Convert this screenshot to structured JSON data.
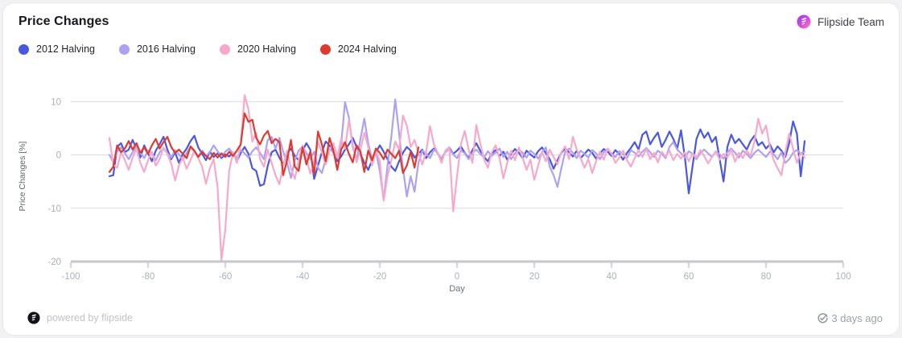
{
  "header": {
    "title": "Price Changes",
    "team": "Flipside Team"
  },
  "legend": [
    {
      "label": "2012 Halving",
      "color": "#4a57e3"
    },
    {
      "label": "2016 Halving",
      "color": "#ada2f2"
    },
    {
      "label": "2020 Halving",
      "color": "#f8a9cb"
    },
    {
      "label": "2024 Halving",
      "color": "#dd3b30"
    }
  ],
  "chart_data": {
    "type": "line",
    "title": "Price Changes",
    "xlabel": "Day",
    "ylabel": "Price Changes [%]",
    "xlim": [
      -100,
      100
    ],
    "ylim": [
      -20,
      12
    ],
    "x_ticks": [
      -100,
      -80,
      -60,
      -40,
      -20,
      0,
      20,
      40,
      60,
      80,
      100
    ],
    "y_ticks": [
      10,
      0,
      -10,
      -20
    ],
    "grid": true,
    "legend_position": "top-left",
    "series": [
      {
        "name": "2012 Halving",
        "color": "#4a57e3",
        "x_start": -90,
        "x_step": 1,
        "values": [
          -4.0,
          -3.8,
          1.5,
          2.2,
          0.5,
          1.0,
          2.8,
          1.2,
          -0.5,
          1.8,
          0.3,
          -1.2,
          0.8,
          2.0,
          3.4,
          1.0,
          -0.8,
          0.5,
          -1.5,
          0.2,
          1.2,
          2.6,
          3.6,
          1.4,
          0.2,
          -1.0,
          0.6,
          -0.4,
          0.3,
          -0.6,
          0.1,
          -0.3,
          0.5,
          -1.2,
          0.4,
          1.5,
          0.2,
          -2.5,
          -3.0,
          -5.8,
          -5.5,
          -2.0,
          0.5,
          1.0,
          -0.5,
          -1.8,
          0.3,
          1.2,
          -0.2,
          -1.0,
          0.8,
          2.2,
          1.0,
          -4.5,
          -2.0,
          0.5,
          2.5,
          1.8,
          0.4,
          -1.2,
          -0.3,
          1.0,
          2.0,
          3.2,
          1.5,
          0.2,
          -1.5,
          -2.8,
          -1.0,
          0.5,
          1.8,
          0.6,
          -0.8,
          -2.2,
          -3.0,
          -1.2,
          0.4,
          1.5,
          0.8,
          -0.5,
          0.2,
          1.0,
          -0.6,
          0.5,
          1.2,
          0.3,
          -0.8,
          0.6,
          1.4,
          0.2,
          0.8,
          1.6,
          0.4,
          -0.6,
          0.9,
          2.2,
          0.8,
          -0.4,
          -1.2,
          0.3,
          0.9,
          -0.2,
          0.6,
          -0.9,
          0.2,
          1.1,
          0.4,
          -0.6,
          0.8,
          0.1,
          -0.5,
          0.7,
          1.4,
          0.3,
          -0.8,
          -2.6,
          -1.0,
          0.4,
          1.2,
          0.5,
          -0.3,
          0.8,
          -0.6,
          0.2,
          1.0,
          0.4,
          -0.7,
          0.3,
          1.1,
          0.6,
          -0.2,
          0.9,
          0.2,
          -0.9,
          0.4,
          1.3,
          2.4,
          1.0,
          3.8,
          4.4,
          2.0,
          3.2,
          4.2,
          1.5,
          2.8,
          4.4,
          3.0,
          1.2,
          4.6,
          -0.5,
          -7.2,
          -2.0,
          3.0,
          4.8,
          3.2,
          4.2,
          2.4,
          3.4,
          -0.8,
          -5.0,
          1.5,
          3.8,
          2.2,
          3.0,
          2.0,
          1.0,
          2.6,
          3.6,
          1.8,
          2.4,
          1.2,
          2.0,
          0.5,
          1.6,
          0.8,
          -0.4,
          2.2,
          6.3,
          4.0,
          -4.0,
          2.6
        ]
      },
      {
        "name": "2016 Halving",
        "color": "#ada2f2",
        "x_start": -90,
        "x_step": 1,
        "values": [
          0.0,
          -1.4,
          0.6,
          1.4,
          0.3,
          -0.8,
          0.5,
          1.6,
          0.4,
          -0.6,
          0.8,
          0.2,
          -1.0,
          0.5,
          1.2,
          0.3,
          -0.5,
          0.9,
          0.1,
          -0.9,
          0.4,
          1.5,
          0.6,
          -0.4,
          0.8,
          -0.2,
          0.5,
          1.8,
          0.7,
          -0.3,
          0.6,
          1.2,
          0.2,
          -0.6,
          0.9,
          0.3,
          -0.5,
          0.7,
          1.4,
          0.4,
          -0.8,
          2.8,
          3.4,
          1.2,
          3.2,
          0.6,
          -1.5,
          -4.3,
          -1.0,
          0.8,
          1.6,
          0.4,
          -0.8,
          0.6,
          -2.4,
          -3.4,
          -0.8,
          1.2,
          0.4,
          -0.6,
          2.0,
          9.9,
          7.0,
          1.5,
          -1.0,
          3.0,
          6.8,
          2.2,
          -0.8,
          0.6,
          -3.0,
          -8.4,
          -2.0,
          3.5,
          10.4,
          4.0,
          -2.5,
          -7.8,
          -4.0,
          -6.9,
          -1.5,
          0.8,
          0.3,
          -0.6,
          1.0,
          0.4,
          -0.9,
          0.5,
          1.2,
          0.1,
          -0.6,
          0.8,
          0.3,
          -0.8,
          0.4,
          1.0,
          0.2,
          -0.5,
          0.7,
          -0.2,
          0.5,
          1.2,
          -0.4,
          0.6,
          -0.8,
          0.3,
          1.0,
          0.4,
          -0.5,
          0.8,
          0.2,
          -0.7,
          0.5,
          1.4,
          -2.2,
          -3.8,
          -6.0,
          -2.5,
          0.6,
          1.2,
          0.4,
          -0.6,
          0.8,
          0.2,
          -0.5,
          0.9,
          0.3,
          -0.8,
          0.5,
          1.1,
          0.2,
          -0.4,
          0.7,
          0.1,
          -0.6,
          0.9,
          0.4,
          -0.3,
          0.6,
          1.3,
          0.5,
          -0.4,
          0.8,
          0.2,
          -0.6,
          1.5,
          2.4,
          1.0,
          0.3,
          -0.5,
          0.7,
          0.2,
          -0.8,
          0.4,
          1.0,
          0.3,
          -0.4,
          0.6,
          0.1,
          -0.7,
          0.5,
          1.2,
          0.4,
          -0.5,
          0.8,
          0.2,
          -0.6,
          0.4,
          1.0,
          0.3,
          -0.4,
          0.6,
          0.1,
          -0.8,
          0.5,
          -1.5,
          -0.8,
          0.4,
          0.9,
          0.3,
          0.6
        ]
      },
      {
        "name": "2020 Halving",
        "color": "#f8a9cb",
        "x_start": -90,
        "x_step": 1,
        "values": [
          3.2,
          -1.8,
          -2.4,
          0.5,
          -1.0,
          -2.8,
          -0.5,
          1.2,
          -1.5,
          -3.2,
          -1.0,
          0.6,
          -2.0,
          -0.8,
          1.4,
          0.2,
          -1.6,
          -4.8,
          -2.0,
          -0.5,
          -2.6,
          -1.0,
          0.8,
          -0.6,
          -2.2,
          -5.4,
          -2.5,
          -0.8,
          -6.0,
          -19.7,
          -14.0,
          -3.0,
          0.5,
          -1.5,
          2.0,
          11.2,
          8.5,
          2.5,
          4.2,
          -0.8,
          -2.2,
          1.0,
          -1.5,
          -3.8,
          -5.5,
          -2.0,
          0.8,
          -2.5,
          -4.5,
          -1.0,
          1.8,
          -0.6,
          -3.5,
          -1.2,
          2.4,
          0.5,
          -1.8,
          0.9,
          2.2,
          -0.4,
          3.0,
          1.2,
          6.5,
          2.0,
          -1.4,
          1.0,
          4.2,
          1.5,
          -2.0,
          0.8,
          -1.2,
          -8.6,
          -4.0,
          -1.0,
          2.5,
          1.0,
          7.4,
          5.5,
          1.5,
          2.8,
          0.5,
          -1.8,
          0.6,
          5.4,
          2.0,
          0.4,
          -1.5,
          0.8,
          1.5,
          -10.6,
          -4.0,
          2.0,
          4.5,
          1.0,
          -1.5,
          5.6,
          2.2,
          -0.8,
          -2.4,
          0.5,
          1.8,
          -0.6,
          -4.4,
          -1.5,
          0.8,
          -1.0,
          1.4,
          -0.5,
          -2.8,
          -0.9,
          -4.7,
          -2.0,
          0.6,
          -1.2,
          1.0,
          -0.4,
          -1.8,
          0.5,
          1.6,
          -0.8,
          3.4,
          1.0,
          -0.6,
          -2.4,
          -0.8,
          -3.4,
          -1.2,
          0.6,
          -0.9,
          1.2,
          0.3,
          -1.5,
          -0.5,
          0.8,
          -1.0,
          -2.2,
          -0.6,
          0.9,
          -0.4,
          1.1,
          -0.8,
          0.4,
          -1.4,
          0.6,
          -0.3,
          0.8,
          -1.0,
          0.2,
          -0.7,
          0.5,
          -1.2,
          0.3,
          -0.5,
          0.9,
          -0.2,
          -1.6,
          -0.4,
          0.7,
          -0.9,
          0.2,
          -0.5,
          1.0,
          -1.3,
          0.4,
          -0.6,
          0.8,
          -0.2,
          2.5,
          6.8,
          4.0,
          5.5,
          1.5,
          -1.0,
          -2.5,
          -3.8,
          0.5,
          4.0,
          1.2,
          -1.5,
          0.4,
          -0.5
        ]
      },
      {
        "name": "2024 Halving",
        "color": "#dd3b30",
        "x_start": -90,
        "x_step": 1,
        "values": [
          -3.2,
          -2.2,
          1.8,
          0.5,
          1.2,
          2.6,
          1.0,
          2.2,
          0.4,
          1.4,
          0.2,
          1.8,
          3.0,
          1.2,
          2.4,
          3.4,
          1.5,
          0.4,
          1.0,
          0.2,
          -0.6,
          1.6,
          0.8,
          -0.4,
          0.6,
          -0.2,
          -0.8,
          0.4,
          -0.5,
          0.3,
          -0.4,
          0.6,
          -0.2,
          0.8,
          2.0,
          7.8,
          6.2,
          6.6,
          3.2,
          2.0,
          3.6,
          4.5,
          2.2,
          3.0,
          2.4,
          -3.8,
          -1.0,
          2.8,
          -2.2,
          -3.0,
          1.4,
          -1.8,
          0.6,
          -3.6,
          4.4,
          2.0,
          -1.2,
          3.2,
          0.8,
          -2.8,
          1.0,
          2.4,
          0.2,
          -1.4,
          1.8,
          0.6,
          -3.2,
          0.8,
          -1.0,
          1.2,
          0.4,
          -0.8,
          1.0,
          0.2,
          -0.6,
          0.8,
          -3.4,
          -2.0,
          0.6,
          -2.4,
          1.4
        ]
      }
    ]
  },
  "footer": {
    "powered_by": "powered by flipside",
    "updated": "3 days ago"
  }
}
